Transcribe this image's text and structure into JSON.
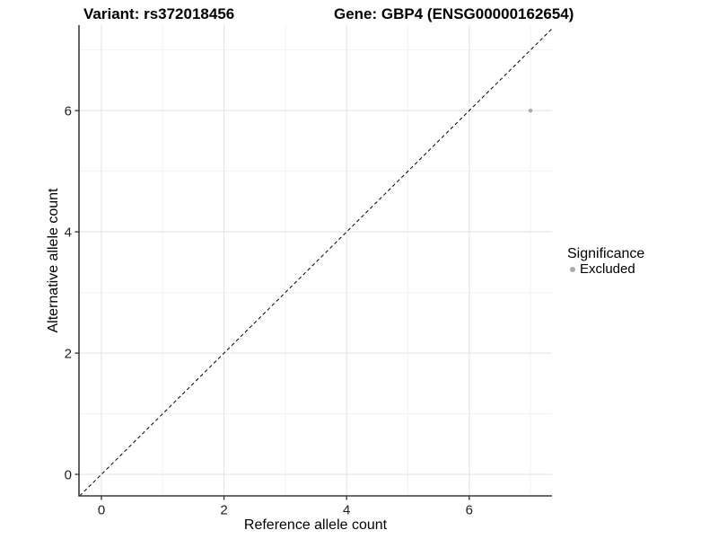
{
  "title": {
    "variant": "Variant: rs372018456",
    "gene": "Gene: GBP4 (ENSG00000162654)"
  },
  "axes": {
    "x_label": "Reference allele count",
    "y_label": "Alternative allele count"
  },
  "legend": {
    "title": "Significance",
    "items": [
      {
        "label": "Excluded",
        "color": "#ababab"
      }
    ]
  },
  "colors": {
    "background": "#ffffff",
    "axis_line": "#3a3a3a",
    "tick_mark": "#3a3a3a",
    "tick_label": "#1f1f1f",
    "grid_major": "#e5e5e5",
    "grid_minor": "#f2f2f2",
    "point": "#adadad",
    "reference_line": "#000000"
  },
  "chart_data": {
    "type": "scatter",
    "title": "Variant: rs372018456   Gene: GBP4 (ENSG00000162654)",
    "xlabel": "Reference allele count",
    "ylabel": "Alternative allele count",
    "xlim": [
      -0.366,
      7.35
    ],
    "ylim": [
      -0.355,
      7.41
    ],
    "x_ticks": [
      0,
      2,
      4,
      6
    ],
    "y_ticks": [
      0,
      2,
      4,
      6
    ],
    "x_minor_gridlines": [
      1,
      3,
      5,
      7
    ],
    "y_minor_gridlines": [
      1,
      3,
      5,
      7
    ],
    "grid": true,
    "legend_position": "right",
    "series": [
      {
        "name": "Excluded",
        "color": "#adadad",
        "points": [
          {
            "x": 7,
            "y": 6
          }
        ]
      }
    ],
    "reference_line": {
      "equation": "y = x",
      "style": "dashed",
      "color": "#000000"
    }
  }
}
